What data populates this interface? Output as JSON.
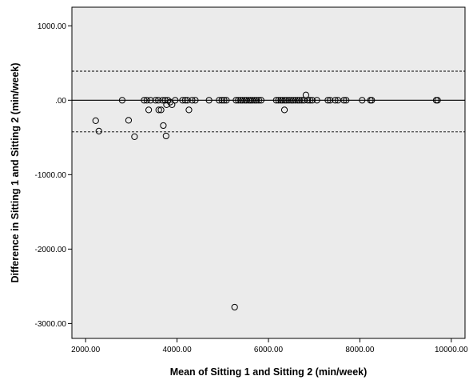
{
  "chart_data": {
    "type": "scatter",
    "title": "",
    "xlabel": "Mean of Sitting 1 and Sitting 2 (min/week)",
    "ylabel": "Difference in Sitting 1 and Sitting 2 (min/week)",
    "xlim": [
      1700,
      10300
    ],
    "ylim": [
      -3200,
      1250
    ],
    "x_ticks": [
      2000,
      4000,
      6000,
      8000,
      10000
    ],
    "x_tick_labels": [
      "2000.00",
      "4000.00",
      "6000.00",
      "8000.00",
      "10000.00"
    ],
    "y_ticks": [
      1000,
      0,
      -1000,
      -2000,
      -3000
    ],
    "y_tick_labels": [
      "1000.00",
      ".00",
      "-1000.00",
      "-2000.00",
      "-3000.00"
    ],
    "grid": false,
    "background": "#ebebeb",
    "marker": "open-circle",
    "reference_lines": [
      {
        "y": 0,
        "style": "solid"
      },
      {
        "y": 390,
        "style": "dashed"
      },
      {
        "y": -425,
        "style": "dashed"
      }
    ],
    "points": [
      {
        "x": 2220,
        "y": -275
      },
      {
        "x": 2290,
        "y": -415
      },
      {
        "x": 2800,
        "y": 0
      },
      {
        "x": 2940,
        "y": -270
      },
      {
        "x": 3070,
        "y": -490
      },
      {
        "x": 3280,
        "y": 0
      },
      {
        "x": 3340,
        "y": 0
      },
      {
        "x": 3380,
        "y": -130
      },
      {
        "x": 3420,
        "y": 0
      },
      {
        "x": 3530,
        "y": 0
      },
      {
        "x": 3590,
        "y": 0
      },
      {
        "x": 3600,
        "y": -130
      },
      {
        "x": 3650,
        "y": -130
      },
      {
        "x": 3680,
        "y": 0
      },
      {
        "x": 3700,
        "y": -340
      },
      {
        "x": 3740,
        "y": 0
      },
      {
        "x": 3760,
        "y": -480
      },
      {
        "x": 3770,
        "y": -60
      },
      {
        "x": 3800,
        "y": 0
      },
      {
        "x": 3850,
        "y": -25
      },
      {
        "x": 3890,
        "y": -60
      },
      {
        "x": 3960,
        "y": 0
      },
      {
        "x": 4120,
        "y": 0
      },
      {
        "x": 4180,
        "y": 0
      },
      {
        "x": 4230,
        "y": 0
      },
      {
        "x": 4260,
        "y": -130
      },
      {
        "x": 4330,
        "y": 0
      },
      {
        "x": 4400,
        "y": 0
      },
      {
        "x": 4700,
        "y": 0
      },
      {
        "x": 4920,
        "y": 0
      },
      {
        "x": 4980,
        "y": 0
      },
      {
        "x": 5030,
        "y": 0
      },
      {
        "x": 5080,
        "y": 0
      },
      {
        "x": 5260,
        "y": -2780
      },
      {
        "x": 5290,
        "y": 0
      },
      {
        "x": 5340,
        "y": 0
      },
      {
        "x": 5390,
        "y": 0
      },
      {
        "x": 5430,
        "y": 0
      },
      {
        "x": 5480,
        "y": 0
      },
      {
        "x": 5520,
        "y": 0
      },
      {
        "x": 5570,
        "y": 0
      },
      {
        "x": 5610,
        "y": 0
      },
      {
        "x": 5650,
        "y": 0
      },
      {
        "x": 5700,
        "y": 0
      },
      {
        "x": 5740,
        "y": 0
      },
      {
        "x": 5790,
        "y": 0
      },
      {
        "x": 5840,
        "y": 0
      },
      {
        "x": 6170,
        "y": 0
      },
      {
        "x": 6220,
        "y": 0
      },
      {
        "x": 6270,
        "y": 0
      },
      {
        "x": 6310,
        "y": 0
      },
      {
        "x": 6350,
        "y": -130
      },
      {
        "x": 6360,
        "y": 0
      },
      {
        "x": 6400,
        "y": 0
      },
      {
        "x": 6450,
        "y": 0
      },
      {
        "x": 6500,
        "y": 0
      },
      {
        "x": 6540,
        "y": 0
      },
      {
        "x": 6590,
        "y": 0
      },
      {
        "x": 6640,
        "y": 0
      },
      {
        "x": 6680,
        "y": 0
      },
      {
        "x": 6730,
        "y": 0
      },
      {
        "x": 6780,
        "y": 0
      },
      {
        "x": 6820,
        "y": 70
      },
      {
        "x": 6860,
        "y": 0
      },
      {
        "x": 6910,
        "y": 0
      },
      {
        "x": 6960,
        "y": 0
      },
      {
        "x": 7060,
        "y": 0
      },
      {
        "x": 7300,
        "y": 0
      },
      {
        "x": 7350,
        "y": 0
      },
      {
        "x": 7460,
        "y": 0
      },
      {
        "x": 7520,
        "y": 0
      },
      {
        "x": 7650,
        "y": 0
      },
      {
        "x": 7700,
        "y": 0
      },
      {
        "x": 8050,
        "y": 0
      },
      {
        "x": 8230,
        "y": 0
      },
      {
        "x": 8260,
        "y": 0
      },
      {
        "x": 9670,
        "y": 0
      },
      {
        "x": 9700,
        "y": 0
      }
    ]
  }
}
